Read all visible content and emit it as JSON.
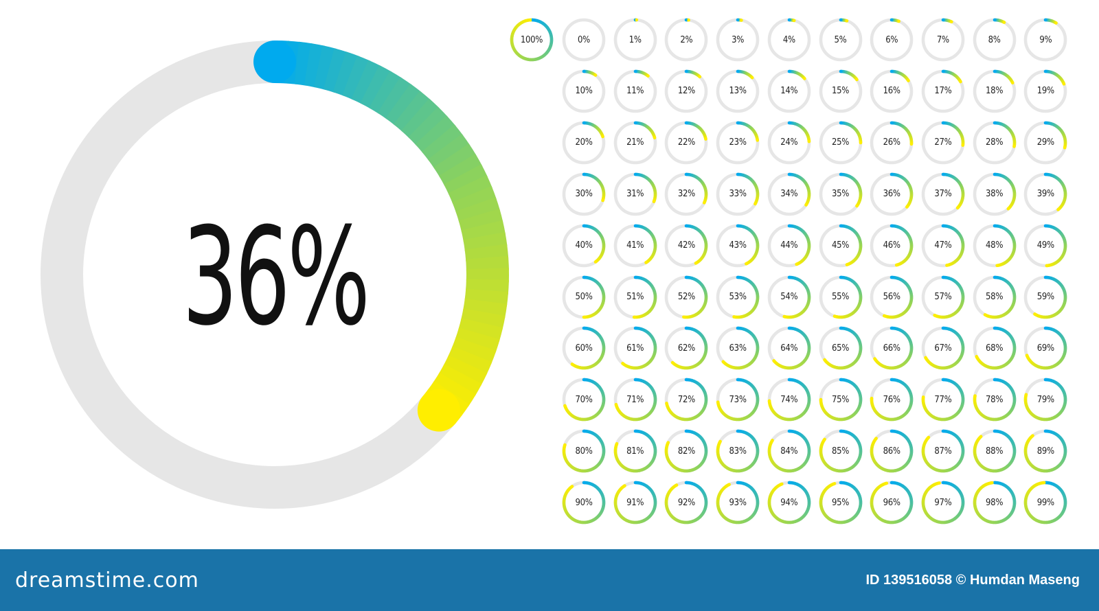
{
  "main_indicator": {
    "percent": 36,
    "label": "36%"
  },
  "indicator_grid": {
    "items": [
      {
        "percent": 100,
        "label": "100%"
      },
      {
        "percent": 0,
        "label": "0%"
      },
      {
        "percent": 1,
        "label": "1%"
      },
      {
        "percent": 2,
        "label": "2%"
      },
      {
        "percent": 3,
        "label": "3%"
      },
      {
        "percent": 4,
        "label": "4%"
      },
      {
        "percent": 5,
        "label": "5%"
      },
      {
        "percent": 6,
        "label": "6%"
      },
      {
        "percent": 7,
        "label": "7%"
      },
      {
        "percent": 8,
        "label": "8%"
      },
      {
        "percent": 9,
        "label": "9%"
      },
      {
        "percent": 10,
        "label": "10%"
      },
      {
        "percent": 11,
        "label": "11%"
      },
      {
        "percent": 12,
        "label": "12%"
      },
      {
        "percent": 13,
        "label": "13%"
      },
      {
        "percent": 14,
        "label": "14%"
      },
      {
        "percent": 15,
        "label": "15%"
      },
      {
        "percent": 16,
        "label": "16%"
      },
      {
        "percent": 17,
        "label": "17%"
      },
      {
        "percent": 18,
        "label": "18%"
      },
      {
        "percent": 19,
        "label": "19%"
      },
      {
        "percent": 20,
        "label": "20%"
      },
      {
        "percent": 21,
        "label": "21%"
      },
      {
        "percent": 22,
        "label": "22%"
      },
      {
        "percent": 23,
        "label": "23%"
      },
      {
        "percent": 24,
        "label": "24%"
      },
      {
        "percent": 25,
        "label": "25%"
      },
      {
        "percent": 26,
        "label": "26%"
      },
      {
        "percent": 27,
        "label": "27%"
      },
      {
        "percent": 28,
        "label": "28%"
      },
      {
        "percent": 29,
        "label": "29%"
      },
      {
        "percent": 30,
        "label": "30%"
      },
      {
        "percent": 31,
        "label": "31%"
      },
      {
        "percent": 32,
        "label": "32%"
      },
      {
        "percent": 33,
        "label": "33%"
      },
      {
        "percent": 34,
        "label": "34%"
      },
      {
        "percent": 35,
        "label": "35%"
      },
      {
        "percent": 36,
        "label": "36%"
      },
      {
        "percent": 37,
        "label": "37%"
      },
      {
        "percent": 38,
        "label": "38%"
      },
      {
        "percent": 39,
        "label": "39%"
      },
      {
        "percent": 40,
        "label": "40%"
      },
      {
        "percent": 41,
        "label": "41%"
      },
      {
        "percent": 42,
        "label": "42%"
      },
      {
        "percent": 43,
        "label": "43%"
      },
      {
        "percent": 44,
        "label": "44%"
      },
      {
        "percent": 45,
        "label": "45%"
      },
      {
        "percent": 46,
        "label": "46%"
      },
      {
        "percent": 47,
        "label": "47%"
      },
      {
        "percent": 48,
        "label": "48%"
      },
      {
        "percent": 49,
        "label": "49%"
      },
      {
        "percent": 50,
        "label": "50%"
      },
      {
        "percent": 51,
        "label": "51%"
      },
      {
        "percent": 52,
        "label": "52%"
      },
      {
        "percent": 53,
        "label": "53%"
      },
      {
        "percent": 54,
        "label": "54%"
      },
      {
        "percent": 55,
        "label": "55%"
      },
      {
        "percent": 56,
        "label": "56%"
      },
      {
        "percent": 57,
        "label": "57%"
      },
      {
        "percent": 58,
        "label": "58%"
      },
      {
        "percent": 59,
        "label": "59%"
      },
      {
        "percent": 60,
        "label": "60%"
      },
      {
        "percent": 61,
        "label": "61%"
      },
      {
        "percent": 62,
        "label": "62%"
      },
      {
        "percent": 63,
        "label": "63%"
      },
      {
        "percent": 64,
        "label": "64%"
      },
      {
        "percent": 65,
        "label": "65%"
      },
      {
        "percent": 66,
        "label": "66%"
      },
      {
        "percent": 67,
        "label": "67%"
      },
      {
        "percent": 68,
        "label": "68%"
      },
      {
        "percent": 69,
        "label": "69%"
      },
      {
        "percent": 70,
        "label": "70%"
      },
      {
        "percent": 71,
        "label": "71%"
      },
      {
        "percent": 72,
        "label": "72%"
      },
      {
        "percent": 73,
        "label": "73%"
      },
      {
        "percent": 74,
        "label": "74%"
      },
      {
        "percent": 75,
        "label": "75%"
      },
      {
        "percent": 76,
        "label": "76%"
      },
      {
        "percent": 77,
        "label": "77%"
      },
      {
        "percent": 78,
        "label": "78%"
      },
      {
        "percent": 79,
        "label": "79%"
      },
      {
        "percent": 80,
        "label": "80%"
      },
      {
        "percent": 81,
        "label": "81%"
      },
      {
        "percent": 82,
        "label": "82%"
      },
      {
        "percent": 83,
        "label": "83%"
      },
      {
        "percent": 84,
        "label": "84%"
      },
      {
        "percent": 85,
        "label": "85%"
      },
      {
        "percent": 86,
        "label": "86%"
      },
      {
        "percent": 87,
        "label": "87%"
      },
      {
        "percent": 88,
        "label": "88%"
      },
      {
        "percent": 89,
        "label": "89%"
      },
      {
        "percent": 90,
        "label": "90%"
      },
      {
        "percent": 91,
        "label": "91%"
      },
      {
        "percent": 92,
        "label": "92%"
      },
      {
        "percent": 93,
        "label": "93%"
      },
      {
        "percent": 94,
        "label": "94%"
      },
      {
        "percent": 95,
        "label": "95%"
      },
      {
        "percent": 96,
        "label": "96%"
      },
      {
        "percent": 97,
        "label": "97%"
      },
      {
        "percent": 98,
        "label": "98%"
      },
      {
        "percent": 99,
        "label": "99%"
      }
    ]
  },
  "colors": {
    "track": "#e6e6e6",
    "gradient_start": "#00aaee",
    "gradient_mid": "#8fd35a",
    "gradient_end": "#ffee00",
    "footer_bg": "#1a73a8",
    "text": "#111111"
  },
  "footer": {
    "logo_text": "dreamstime.com",
    "credit_text": "ID 139516058 © Humdan Maseng"
  }
}
